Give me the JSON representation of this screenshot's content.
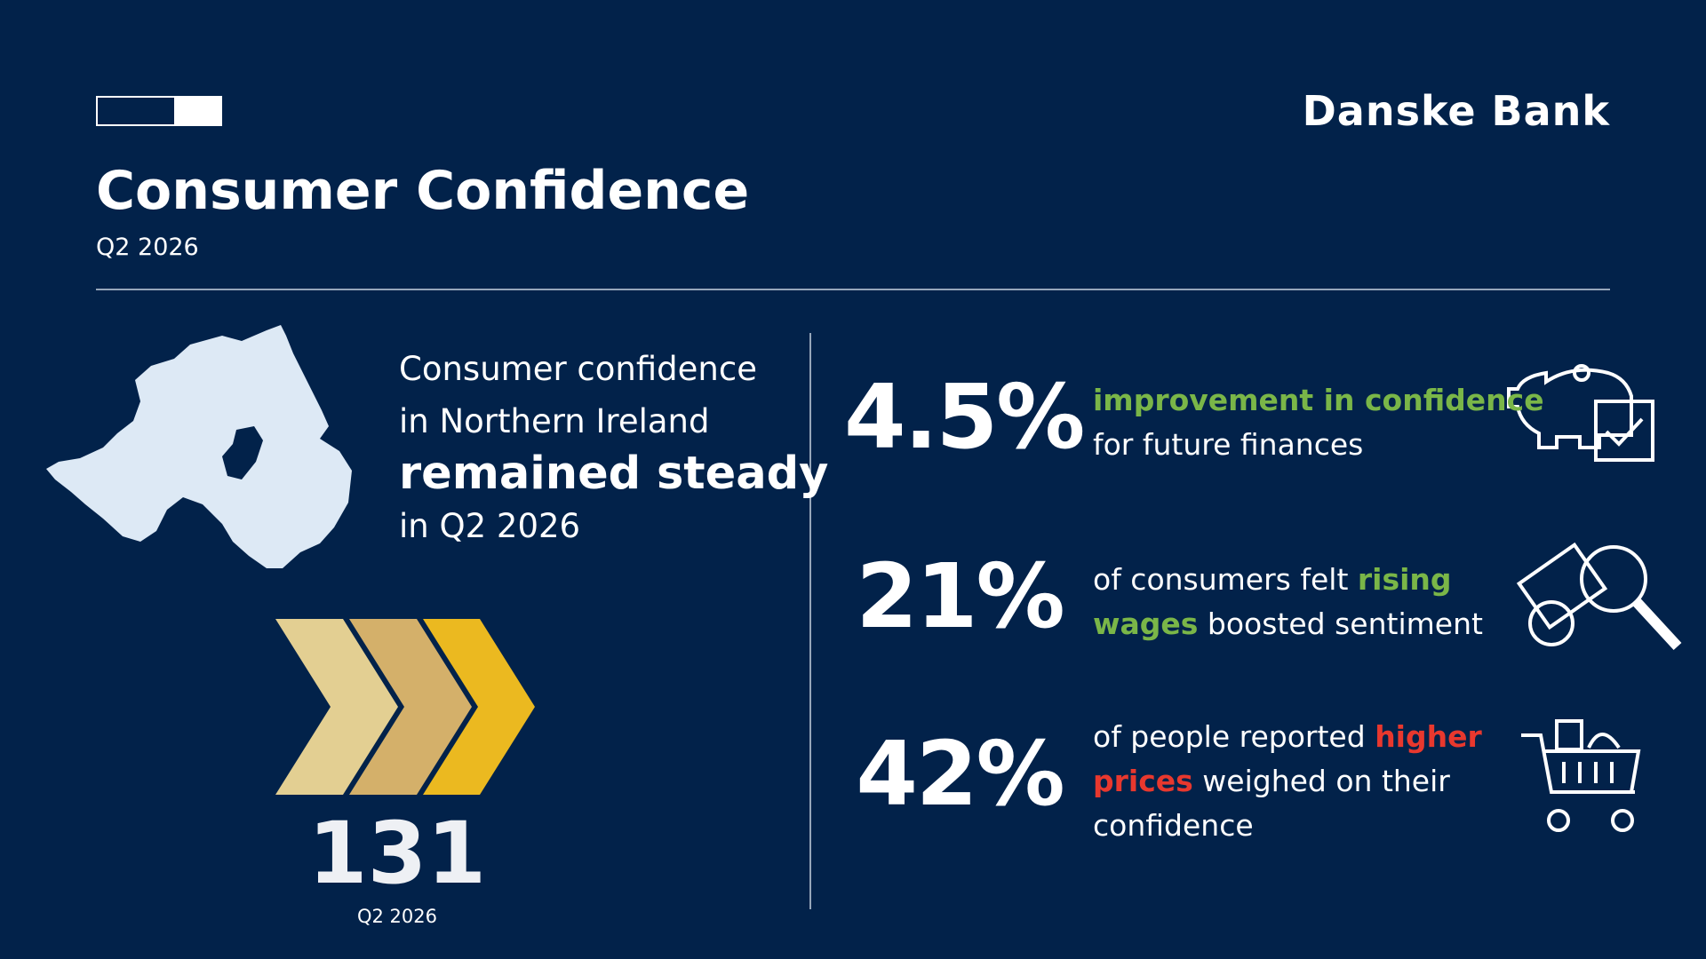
{
  "header": {
    "logo": "Danske Bank",
    "title": "Consumer Confidence",
    "subtitle": "Q2 2026"
  },
  "intro": {
    "lines": [
      "Consumer confidence",
      "in Northern Ireland",
      "remained steady",
      "in Q2 2026"
    ]
  },
  "index": {
    "value": "131",
    "label": "Q2 2026"
  },
  "stats": [
    {
      "value": "4.5%",
      "lines": [
        [
          {
            "text": "improvement in confidence",
            "color": "#7ab648"
          }
        ],
        [
          {
            "text": "for future finances"
          }
        ]
      ]
    },
    {
      "value": "21%",
      "lines": [
        [
          {
            "text": "of consumers felt"
          },
          {
            "text": "rising",
            "color": "#7ab648"
          }
        ],
        [
          {
            "text": "wages",
            "color": "#7ab648"
          },
          {
            "text": "boosted sentiment"
          }
        ]
      ]
    },
    {
      "value": "42%",
      "lines": [
        [
          {
            "text": "of people reported"
          },
          {
            "text": "higher",
            "color": "#e8382e"
          }
        ],
        [
          {
            "text": "prices",
            "color": "#e8382e"
          },
          {
            "text": "weighed on their"
          }
        ],
        [
          {
            "text": "confidence"
          }
        ]
      ]
    }
  ]
}
